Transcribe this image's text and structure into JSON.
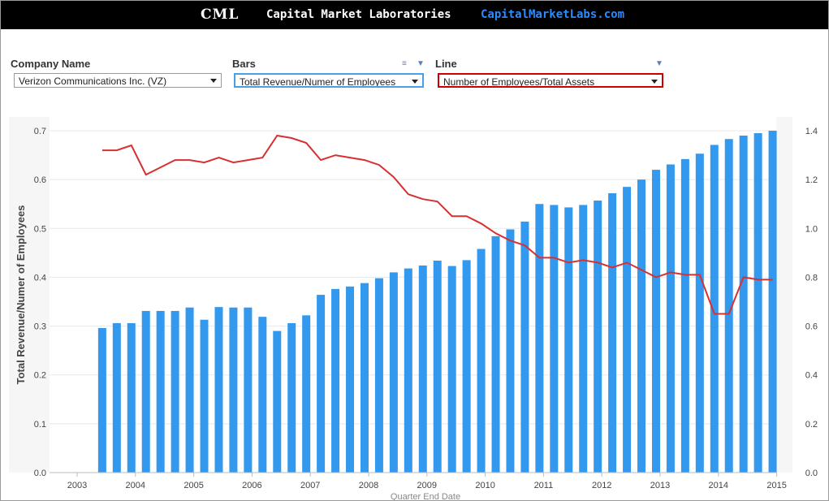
{
  "banner": {
    "logo": "CML",
    "name": "Capital Market Laboratories",
    "site": "CapitalMarketLabs.com"
  },
  "controls": {
    "company": {
      "label": "Company Name",
      "value": "Verizon Communications Inc. (VZ)"
    },
    "bars": {
      "label": "Bars",
      "value": "Total Revenue/Numer of Employees",
      "border_color": "#4a9ee6"
    },
    "line": {
      "label": "Line",
      "value": "Number of Employees/Total Assets",
      "border_color": "#cc0000"
    },
    "menu_icon": "list-icon",
    "dropdown_icon": "chevron-down-icon"
  },
  "chart_data": {
    "type": "bar",
    "xlabel": "Quarter End Date",
    "ylabel": "Total Revenue/Numer of Employees",
    "ylabel_right": "",
    "ylim": [
      0,
      0.7
    ],
    "ylim_right": [
      0,
      1.4
    ],
    "yticks": [
      0.0,
      0.1,
      0.2,
      0.3,
      0.4,
      0.5,
      0.6,
      0.7
    ],
    "yticks_right": [
      0.0,
      0.2,
      0.4,
      0.6,
      0.8,
      1.0,
      1.2,
      1.4
    ],
    "xticks": [
      "2003",
      "2004",
      "2005",
      "2006",
      "2007",
      "2008",
      "2009",
      "2010",
      "2011",
      "2012",
      "2013",
      "2014",
      "2015"
    ],
    "grid": true,
    "colors": {
      "bars": "#3399ee",
      "line": "#d83030"
    },
    "x": [
      "2003-Q2",
      "2003-Q3",
      "2003-Q4",
      "2004-Q1",
      "2004-Q2",
      "2004-Q3",
      "2004-Q4",
      "2005-Q1",
      "2005-Q2",
      "2005-Q3",
      "2005-Q4",
      "2006-Q1",
      "2006-Q2",
      "2006-Q3",
      "2006-Q4",
      "2007-Q1",
      "2007-Q2",
      "2007-Q3",
      "2007-Q4",
      "2008-Q1",
      "2008-Q2",
      "2008-Q3",
      "2008-Q4",
      "2009-Q1",
      "2009-Q2",
      "2009-Q3",
      "2009-Q4",
      "2010-Q1",
      "2010-Q2",
      "2010-Q3",
      "2010-Q4",
      "2011-Q1",
      "2011-Q2",
      "2011-Q3",
      "2011-Q4",
      "2012-Q1",
      "2012-Q2",
      "2012-Q3",
      "2012-Q4",
      "2013-Q1",
      "2013-Q2",
      "2013-Q3",
      "2013-Q4",
      "2014-Q1",
      "2014-Q2",
      "2014-Q3",
      "2014-Q4"
    ],
    "series": [
      {
        "type": "bar",
        "axis": "left",
        "values": [
          0.296,
          0.306,
          0.306,
          0.331,
          0.331,
          0.331,
          0.338,
          0.313,
          0.339,
          0.338,
          0.338,
          0.319,
          0.29,
          0.306,
          0.322,
          0.364,
          0.376,
          0.381,
          0.388,
          0.398,
          0.41,
          0.418,
          0.424,
          0.434,
          0.423,
          0.435,
          0.458,
          0.484,
          0.498,
          0.514,
          0.55,
          0.548,
          0.543,
          0.548,
          0.557,
          0.572,
          0.585,
          0.6,
          0.62,
          0.631,
          0.642,
          0.653,
          0.671,
          0.683,
          0.69,
          0.695,
          0.7
        ]
      },
      {
        "type": "line",
        "axis": "right",
        "values": [
          1.32,
          1.32,
          1.34,
          1.22,
          1.25,
          1.28,
          1.28,
          1.27,
          1.29,
          1.27,
          1.28,
          1.29,
          1.38,
          1.37,
          1.35,
          1.28,
          1.3,
          1.29,
          1.28,
          1.26,
          1.21,
          1.14,
          1.12,
          1.11,
          1.05,
          1.05,
          1.02,
          0.98,
          0.95,
          0.93,
          0.88,
          0.88,
          0.86,
          0.87,
          0.86,
          0.84,
          0.86,
          0.83,
          0.8,
          0.82,
          0.81,
          0.81,
          0.65,
          0.65,
          0.8,
          0.79,
          0.79
        ]
      }
    ]
  }
}
